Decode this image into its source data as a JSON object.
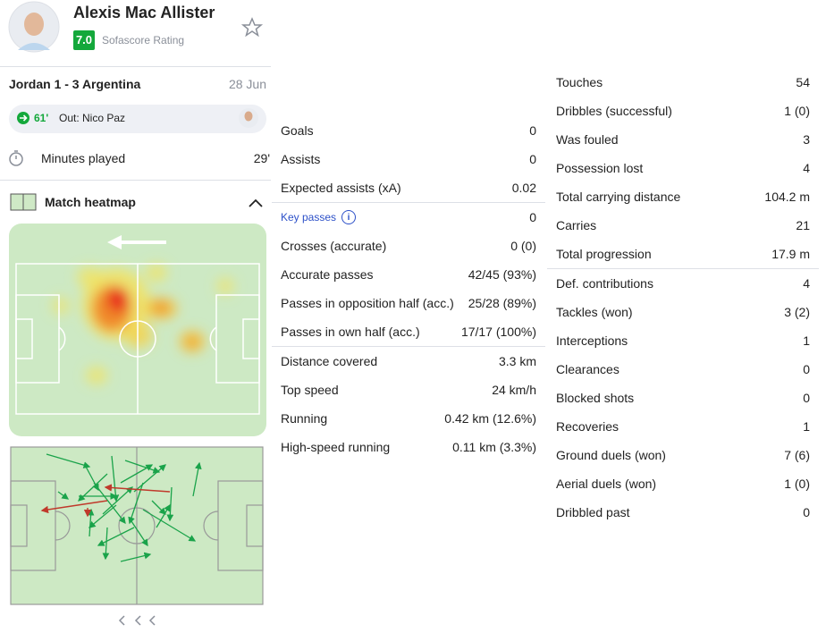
{
  "player": {
    "name": "Alexis Mac Allister",
    "rating": "7.0",
    "rating_label": "Sofascore Rating"
  },
  "match": {
    "title": "Jordan 1 - 3 Argentina",
    "date": "28 Jun"
  },
  "substitution": {
    "minute": "61'",
    "text": "Out: Nico Paz"
  },
  "minutes": {
    "label": "Minutes played",
    "value": "29'"
  },
  "heatmap": {
    "title": "Match heatmap"
  },
  "stats": {
    "middle": [
      [
        [
          "Goals",
          "0"
        ],
        [
          "Assists",
          "0"
        ],
        [
          "Expected assists (xA)",
          "0.02"
        ]
      ],
      [
        [
          "Key passes",
          "0"
        ],
        [
          "Crosses (accurate)",
          "0 (0)"
        ],
        [
          "Accurate passes",
          "42/45 (93%)"
        ],
        [
          "Passes in opposition half (acc.)",
          "25/28 (89%)"
        ],
        [
          "Passes in own half (acc.)",
          "17/17 (100%)"
        ]
      ],
      [
        [
          "Distance covered",
          "3.3 km"
        ],
        [
          "Top speed",
          "24 km/h"
        ],
        [
          "Running",
          "0.42 km (12.6%)"
        ],
        [
          "High-speed running",
          "0.11 km (3.3%)"
        ]
      ]
    ],
    "right": [
      [
        [
          "Touches",
          "54"
        ],
        [
          "Dribbles (successful)",
          "1 (0)"
        ],
        [
          "Was fouled",
          "3"
        ],
        [
          "Possession lost",
          "4"
        ],
        [
          "Total carrying distance",
          "104.2 m"
        ],
        [
          "Carries",
          "21"
        ],
        [
          "Total progression",
          "17.9 m"
        ]
      ],
      [
        [
          "Def. contributions",
          "4"
        ],
        [
          "Tackles (won)",
          "3 (2)"
        ],
        [
          "Interceptions",
          "1"
        ],
        [
          "Clearances",
          "0"
        ],
        [
          "Blocked shots",
          "0"
        ],
        [
          "Recoveries",
          "1"
        ],
        [
          "Ground duels (won)",
          "7 (6)"
        ],
        [
          "Aerial duels (won)",
          "1 (0)"
        ],
        [
          "Dribbled past",
          "0"
        ]
      ]
    ]
  }
}
